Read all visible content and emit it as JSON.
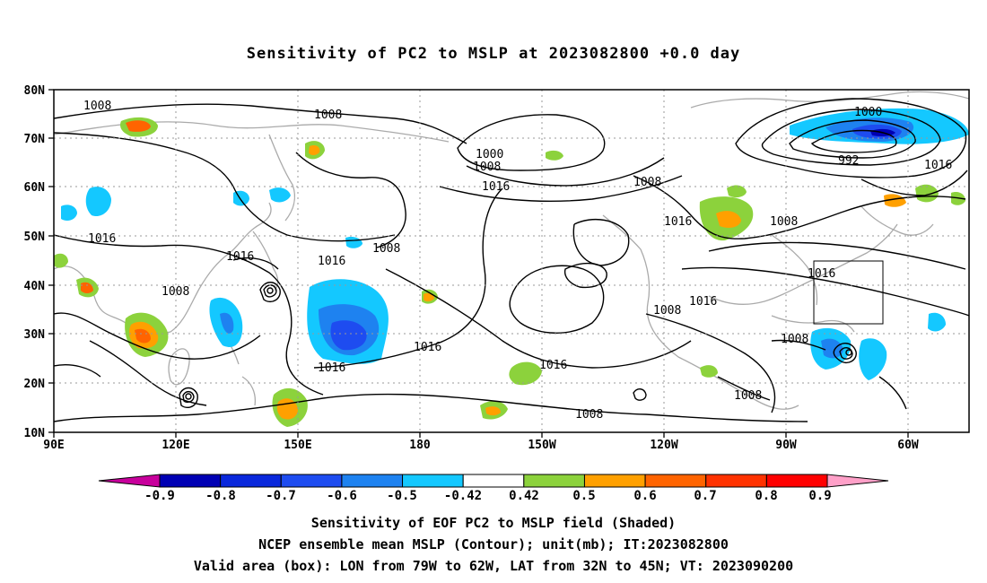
{
  "title": "Sensitivity of PC2 to MSLP at 2023082800 +0.0 day",
  "map": {
    "lat_labels": [
      "80N",
      "70N",
      "60N",
      "50N",
      "40N",
      "30N",
      "20N",
      "10N"
    ],
    "lon_labels": [
      "90E",
      "120E",
      "150E",
      "180",
      "150W",
      "120W",
      "90W",
      "60W"
    ],
    "contour_labels": {
      "c1008": "1008",
      "c1016": "1016",
      "c1000": "1000",
      "c992": "992"
    },
    "valid_box": {
      "lon_from": "79W",
      "lon_to": "62W",
      "lat_from": "32N",
      "lat_to": "45N"
    }
  },
  "colorbar": {
    "labels": [
      "-0.9",
      "-0.8",
      "-0.7",
      "-0.6",
      "-0.5",
      "-0.42",
      "0.42",
      "0.5",
      "0.6",
      "0.7",
      "0.8",
      "0.9"
    ],
    "colors": [
      "#c8009c",
      "#0000b4",
      "#0a28dc",
      "#1e4cf0",
      "#1e82f0",
      "#14c8ff",
      "#ffffff",
      "#8cd23c",
      "#ffa000",
      "#ff6400",
      "#ff3200",
      "#ff0000",
      "#ffa0c8"
    ]
  },
  "captions": [
    "Sensitivity of EOF PC2 to MSLP field (Shaded)",
    "NCEP ensemble mean MSLP (Contour); unit(mb); IT:2023082800",
    "Valid area (box): LON from 79W to 62W, LAT from 32N to 45N; VT: 2023090200"
  ]
}
